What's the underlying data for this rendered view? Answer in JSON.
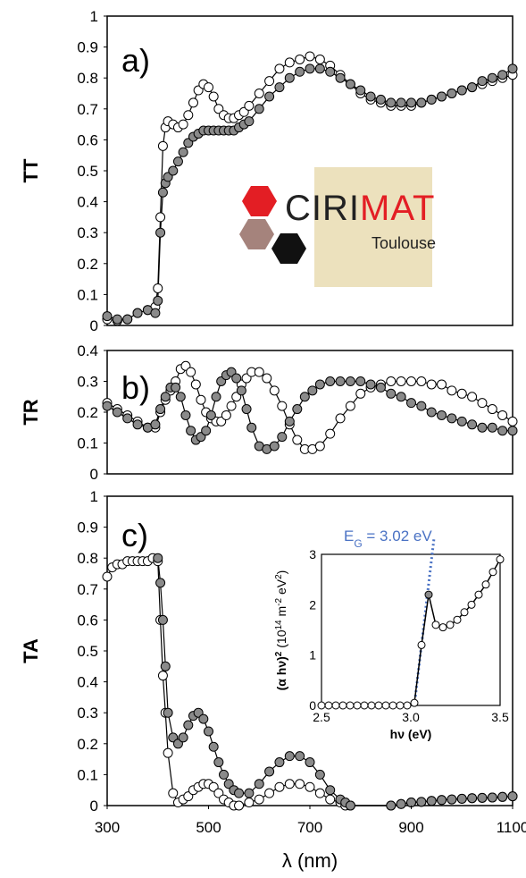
{
  "figure": {
    "x_axis_label": "λ (nm)",
    "x_ticks": [
      "300",
      "500",
      "700",
      "900",
      "1100"
    ]
  },
  "logo": {
    "part1": "CIRI",
    "part2": "MAT",
    "sub": "Toulouse",
    "color_red": "#e31e24",
    "color_black": "#222222",
    "color_brown": "#a5837c"
  },
  "chart_data": [
    {
      "type": "scatter",
      "panel_label": "a)",
      "ylabel": "TT",
      "xlim": [
        300,
        1100
      ],
      "ylim": [
        0,
        1
      ],
      "yticks": [
        "0",
        "0.1",
        "0.2",
        "0.3",
        "0.4",
        "0.5",
        "0.6",
        "0.7",
        "0.8",
        "0.9",
        "1"
      ],
      "series": [
        {
          "style": "open",
          "x": [
            300,
            320,
            340,
            360,
            380,
            395,
            400,
            405,
            410,
            415,
            420,
            430,
            440,
            450,
            460,
            470,
            480,
            490,
            500,
            510,
            520,
            530,
            540,
            550,
            560,
            570,
            580,
            600,
            620,
            640,
            660,
            680,
            700,
            720,
            740,
            760,
            780,
            800,
            820,
            840,
            860,
            880,
            900,
            920,
            940,
            960,
            980,
            1000,
            1020,
            1040,
            1060,
            1080,
            1100
          ],
          "y": [
            0.02,
            0.015,
            0.02,
            0.04,
            0.05,
            0.06,
            0.12,
            0.35,
            0.58,
            0.64,
            0.66,
            0.65,
            0.64,
            0.65,
            0.68,
            0.72,
            0.76,
            0.78,
            0.77,
            0.74,
            0.7,
            0.68,
            0.67,
            0.67,
            0.68,
            0.69,
            0.71,
            0.75,
            0.79,
            0.83,
            0.85,
            0.86,
            0.87,
            0.86,
            0.84,
            0.81,
            0.78,
            0.75,
            0.73,
            0.72,
            0.71,
            0.71,
            0.71,
            0.72,
            0.73,
            0.74,
            0.75,
            0.76,
            0.77,
            0.78,
            0.79,
            0.8,
            0.81
          ]
        },
        {
          "style": "filled",
          "x": [
            300,
            320,
            340,
            360,
            380,
            395,
            400,
            405,
            410,
            415,
            420,
            430,
            440,
            450,
            460,
            470,
            480,
            490,
            500,
            510,
            520,
            530,
            540,
            550,
            560,
            570,
            580,
            600,
            620,
            640,
            660,
            680,
            700,
            720,
            740,
            760,
            780,
            800,
            820,
            840,
            860,
            880,
            900,
            920,
            940,
            960,
            980,
            1000,
            1020,
            1040,
            1060,
            1080,
            1100
          ],
          "y": [
            0.03,
            0.02,
            0.02,
            0.04,
            0.05,
            0.04,
            0.08,
            0.3,
            0.43,
            0.46,
            0.48,
            0.5,
            0.53,
            0.56,
            0.59,
            0.61,
            0.62,
            0.63,
            0.63,
            0.63,
            0.63,
            0.63,
            0.63,
            0.63,
            0.64,
            0.65,
            0.66,
            0.7,
            0.74,
            0.77,
            0.8,
            0.82,
            0.83,
            0.83,
            0.82,
            0.8,
            0.78,
            0.76,
            0.74,
            0.73,
            0.72,
            0.72,
            0.72,
            0.72,
            0.73,
            0.74,
            0.75,
            0.76,
            0.77,
            0.79,
            0.8,
            0.81,
            0.83
          ]
        }
      ]
    },
    {
      "type": "scatter",
      "panel_label": "b)",
      "ylabel": "TR",
      "xlim": [
        300,
        1100
      ],
      "ylim": [
        0,
        0.4
      ],
      "yticks": [
        "0",
        "0.1",
        "0.2",
        "0.3",
        "0.4"
      ],
      "series": [
        {
          "style": "open",
          "x": [
            300,
            320,
            340,
            360,
            380,
            395,
            405,
            415,
            425,
            435,
            445,
            455,
            465,
            475,
            485,
            495,
            505,
            515,
            525,
            535,
            545,
            555,
            565,
            575,
            585,
            600,
            615,
            630,
            645,
            660,
            675,
            690,
            705,
            720,
            740,
            760,
            780,
            800,
            820,
            840,
            860,
            880,
            900,
            920,
            940,
            960,
            980,
            1000,
            1020,
            1040,
            1060,
            1080,
            1100
          ],
          "y": [
            0.23,
            0.21,
            0.19,
            0.17,
            0.15,
            0.15,
            0.2,
            0.24,
            0.27,
            0.3,
            0.34,
            0.35,
            0.33,
            0.29,
            0.24,
            0.2,
            0.18,
            0.17,
            0.17,
            0.19,
            0.22,
            0.25,
            0.29,
            0.31,
            0.33,
            0.33,
            0.31,
            0.27,
            0.22,
            0.16,
            0.11,
            0.08,
            0.08,
            0.09,
            0.13,
            0.18,
            0.22,
            0.26,
            0.28,
            0.29,
            0.3,
            0.3,
            0.3,
            0.3,
            0.29,
            0.29,
            0.27,
            0.26,
            0.25,
            0.23,
            0.21,
            0.19,
            0.17
          ]
        },
        {
          "style": "filled",
          "x": [
            300,
            320,
            340,
            360,
            380,
            395,
            405,
            415,
            425,
            435,
            445,
            455,
            465,
            475,
            485,
            495,
            505,
            515,
            525,
            535,
            545,
            555,
            565,
            575,
            585,
            600,
            615,
            630,
            645,
            660,
            675,
            690,
            705,
            720,
            740,
            760,
            780,
            800,
            820,
            840,
            860,
            880,
            900,
            920,
            940,
            960,
            980,
            1000,
            1020,
            1040,
            1060,
            1080,
            1100
          ],
          "y": [
            0.22,
            0.2,
            0.18,
            0.16,
            0.15,
            0.16,
            0.21,
            0.25,
            0.28,
            0.28,
            0.25,
            0.19,
            0.14,
            0.11,
            0.12,
            0.14,
            0.19,
            0.25,
            0.3,
            0.32,
            0.33,
            0.31,
            0.27,
            0.21,
            0.15,
            0.09,
            0.08,
            0.09,
            0.12,
            0.17,
            0.21,
            0.25,
            0.27,
            0.29,
            0.3,
            0.3,
            0.3,
            0.3,
            0.29,
            0.28,
            0.26,
            0.25,
            0.23,
            0.22,
            0.2,
            0.19,
            0.18,
            0.17,
            0.16,
            0.15,
            0.15,
            0.14,
            0.14
          ]
        }
      ]
    },
    {
      "type": "scatter",
      "panel_label": "c)",
      "ylabel": "TA",
      "xlim": [
        300,
        1100
      ],
      "ylim": [
        0,
        1
      ],
      "yticks": [
        "0",
        "0.1",
        "0.2",
        "0.3",
        "0.4",
        "0.5",
        "0.6",
        "0.7",
        "0.8",
        "0.9",
        "1"
      ],
      "series": [
        {
          "style": "open",
          "x": [
            300,
            310,
            320,
            330,
            340,
            350,
            360,
            370,
            380,
            390,
            400,
            405,
            410,
            415,
            420,
            430,
            440,
            450,
            460,
            470,
            480,
            490,
            500,
            510,
            520,
            530,
            540,
            550,
            560,
            580,
            600,
            620,
            640,
            660,
            680,
            700,
            720,
            740,
            760,
            770,
            780,
            860,
            880,
            900,
            920,
            940,
            960,
            980,
            1000,
            1020,
            1040,
            1060,
            1080,
            1100
          ],
          "y": [
            0.74,
            0.77,
            0.78,
            0.78,
            0.79,
            0.79,
            0.79,
            0.79,
            0.79,
            0.8,
            0.79,
            0.6,
            0.42,
            0.3,
            0.17,
            0.04,
            0.01,
            0.02,
            0.03,
            0.05,
            0.06,
            0.07,
            0.07,
            0.06,
            0.04,
            0.02,
            0.01,
            0.0,
            0.0,
            0.01,
            0.02,
            0.04,
            0.06,
            0.07,
            0.07,
            0.06,
            0.04,
            0.02,
            0.01,
            0.0,
            0.0,
            0.0,
            0.005,
            0.01,
            0.012,
            0.015,
            0.018,
            0.02,
            0.022,
            0.024,
            0.025,
            0.026,
            0.028,
            0.03
          ]
        },
        {
          "style": "filled",
          "x": [
            400,
            405,
            410,
            415,
            420,
            430,
            440,
            450,
            460,
            470,
            480,
            490,
            500,
            510,
            520,
            530,
            540,
            550,
            560,
            580,
            600,
            620,
            640,
            660,
            680,
            700,
            720,
            740,
            760,
            770,
            780,
            860,
            880,
            900,
            920,
            940,
            960,
            980,
            1000,
            1020,
            1040,
            1060,
            1080,
            1100
          ],
          "y": [
            0.8,
            0.72,
            0.6,
            0.45,
            0.3,
            0.22,
            0.2,
            0.22,
            0.26,
            0.29,
            0.3,
            0.28,
            0.24,
            0.19,
            0.14,
            0.1,
            0.07,
            0.05,
            0.04,
            0.04,
            0.07,
            0.11,
            0.14,
            0.16,
            0.16,
            0.14,
            0.1,
            0.05,
            0.02,
            0.01,
            0.0,
            0.0,
            0.005,
            0.01,
            0.012,
            0.015,
            0.018,
            0.02,
            0.022,
            0.024,
            0.025,
            0.026,
            0.028,
            0.03
          ]
        }
      ]
    },
    {
      "type": "scatter",
      "panel_label": "",
      "inset": true,
      "ylabel": "(α hν)² (10¹⁴ m⁻² eV²)",
      "xlabel": "hν (eV)",
      "annotation": "E_G = 3.02 eV",
      "annotation_color": "#4a72c4",
      "xlim": [
        2.5,
        3.5
      ],
      "ylim": [
        0,
        3
      ],
      "xticks": [
        "2.5",
        "3.0",
        "3.5"
      ],
      "yticks": [
        "0",
        "1",
        "2",
        "3"
      ],
      "series": [
        {
          "style": "open",
          "x": [
            2.5,
            2.54,
            2.58,
            2.62,
            2.66,
            2.7,
            2.74,
            2.78,
            2.82,
            2.86,
            2.9,
            2.94,
            2.98,
            3.02,
            3.06,
            3.1,
            3.14,
            3.18,
            3.22,
            3.26,
            3.3,
            3.34,
            3.38,
            3.42,
            3.46,
            3.5
          ],
          "y": [
            0,
            0,
            0,
            0,
            0,
            0,
            0,
            0,
            0,
            0,
            0,
            0,
            0,
            0.05,
            1.2,
            2.2,
            1.6,
            1.55,
            1.6,
            1.7,
            1.85,
            2.0,
            2.2,
            2.4,
            2.65,
            2.9
          ]
        }
      ],
      "fit_line": {
        "x": [
          3.02,
          3.13
        ],
        "y": [
          0,
          3
        ]
      }
    }
  ],
  "insert_texts": {
    "eg_prefix": "E",
    "eg_sub": "G",
    "eg_value": " = 3.02 eV",
    "inset_ylabel_a": "(α hν)",
    "inset_ylabel_b": "2",
    "inset_ylabel_c": " (10",
    "inset_ylabel_d": "14",
    "inset_ylabel_e": " m",
    "inset_ylabel_f": "-2",
    "inset_ylabel_g": " eV",
    "inset_ylabel_h": "2",
    "inset_ylabel_i": ")"
  }
}
